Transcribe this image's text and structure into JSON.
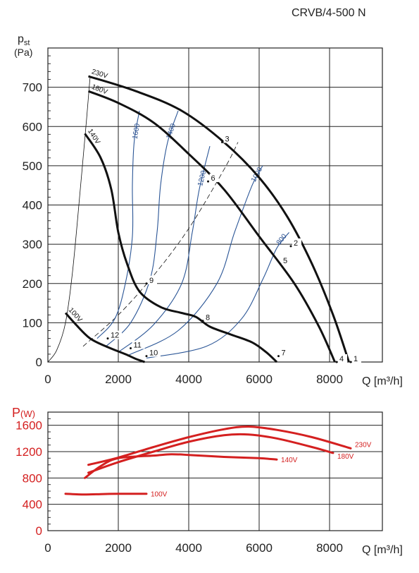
{
  "model": "CRVB/4-500 N",
  "chart_data": [
    {
      "type": "line",
      "title": "CRVB/4-500 N",
      "ylabel_main": "p",
      "ylabel_sub": "st",
      "yunit": "(Pa)",
      "xlabel": "Q [m³/h]",
      "xlim": [
        0,
        9500
      ],
      "ylim": [
        0,
        800
      ],
      "xticks": [
        0,
        2000,
        4000,
        6000,
        8000
      ],
      "yticks": [
        0,
        100,
        200,
        300,
        400,
        500,
        600,
        700
      ],
      "grid": true,
      "voltage_curves": [
        {
          "name": "230V",
          "points": [
            [
              1150,
              728
            ],
            [
              2500,
              690
            ],
            [
              3800,
              640
            ],
            [
              5000,
              560
            ],
            [
              6000,
              470
            ],
            [
              6800,
              370
            ],
            [
              7500,
              250
            ],
            [
              8100,
              120
            ],
            [
              8550,
              0
            ]
          ]
        },
        {
          "name": "180V",
          "points": [
            [
              1150,
              690
            ],
            [
              2000,
              660
            ],
            [
              3000,
              610
            ],
            [
              4000,
              530
            ],
            [
              5000,
              440
            ],
            [
              6000,
              320
            ],
            [
              7000,
              200
            ],
            [
              7700,
              90
            ],
            [
              8150,
              0
            ]
          ]
        },
        {
          "name": "140V",
          "points": [
            [
              1050,
              582
            ],
            [
              1500,
              520
            ],
            [
              1800,
              440
            ],
            [
              2000,
              330
            ],
            [
              2250,
              250
            ],
            [
              2600,
              180
            ],
            [
              3200,
              140
            ],
            [
              3800,
              125
            ],
            [
              4200,
              115
            ],
            [
              4600,
              90
            ],
            [
              5200,
              70
            ],
            [
              5800,
              50
            ],
            [
              6200,
              25
            ],
            [
              6500,
              0
            ]
          ]
        },
        {
          "name": "100V",
          "points": [
            [
              500,
              125
            ],
            [
              800,
              95
            ],
            [
              1200,
              60
            ],
            [
              1700,
              38
            ],
            [
              2200,
              20
            ],
            [
              2500,
              8
            ],
            [
              2750,
              0
            ]
          ]
        }
      ],
      "isopower_curves": [
        {
          "name": "1600",
          "points": [
            [
              1400,
              60
            ],
            [
              1900,
              110
            ],
            [
              2200,
              200
            ],
            [
              2400,
              320
            ],
            [
              2400,
              450
            ],
            [
              2450,
              560
            ],
            [
              2600,
              640
            ]
          ]
        },
        {
          "name": "1400",
          "points": [
            [
              1650,
              40
            ],
            [
              2350,
              100
            ],
            [
              2900,
              210
            ],
            [
              3100,
              330
            ],
            [
              3200,
              450
            ],
            [
              3400,
              560
            ],
            [
              3700,
              640
            ]
          ]
        },
        {
          "name": "1200",
          "points": [
            [
              2000,
              25
            ],
            [
              3000,
              95
            ],
            [
              3800,
              200
            ],
            [
              4100,
              330
            ],
            [
              4300,
              440
            ],
            [
              4600,
              550
            ]
          ]
        },
        {
          "name": "1000",
          "points": [
            [
              2300,
              18
            ],
            [
              3700,
              80
            ],
            [
              4800,
              200
            ],
            [
              5300,
              330
            ],
            [
              5800,
              450
            ],
            [
              6100,
              500
            ]
          ]
        },
        {
          "name": "800",
          "points": [
            [
              2800,
              10
            ],
            [
              4500,
              40
            ],
            [
              5500,
              110
            ],
            [
              6100,
              210
            ],
            [
              6500,
              290
            ],
            [
              6850,
              330
            ]
          ]
        }
      ],
      "system_curves": [
        {
          "style": "solid",
          "points": [
            [
              0,
              0
            ],
            [
              250,
              30
            ],
            [
              500,
              100
            ],
            [
              700,
              230
            ],
            [
              900,
              420
            ],
            [
              1100,
              620
            ],
            [
              1200,
              728
            ]
          ]
        },
        {
          "style": "dashed",
          "points": [
            [
              1000,
              40
            ],
            [
              2000,
              120
            ],
            [
              3000,
              220
            ],
            [
              4000,
              340
            ],
            [
              5000,
              490
            ],
            [
              5400,
              560
            ]
          ]
        }
      ],
      "operating_points": [
        {
          "label": "1",
          "q": 8600,
          "p": 0
        },
        {
          "label": "2",
          "q": 6900,
          "p": 295
        },
        {
          "label": "3",
          "q": 4950,
          "p": 560
        },
        {
          "label": "4",
          "q": 8200,
          "p": 0
        },
        {
          "label": "5",
          "q": 6600,
          "p": 250
        },
        {
          "label": "6",
          "q": 4550,
          "p": 460
        },
        {
          "label": "7",
          "q": 6550,
          "p": 15
        },
        {
          "label": "8",
          "q": 4400,
          "p": 105
        },
        {
          "label": "9",
          "q": 2800,
          "p": 200
        },
        {
          "label": "10",
          "q": 2800,
          "p": 15
        },
        {
          "label": "11",
          "q": 2350,
          "p": 35
        },
        {
          "label": "12",
          "q": 1700,
          "p": 60
        }
      ]
    },
    {
      "type": "line",
      "ylabel": "P",
      "yunit": "(W)",
      "xlabel": "Q [m³/h]",
      "xlim": [
        0,
        9500
      ],
      "ylim": [
        0,
        1800
      ],
      "xticks": [
        0,
        2000,
        4000,
        6000,
        8000
      ],
      "yticks": [
        0,
        400,
        800,
        1200,
        1600
      ],
      "grid": true,
      "series": [
        {
          "name": "230V",
          "x": [
            1150,
            2000,
            3000,
            4000,
            5000,
            5700,
            6500,
            7500,
            8600
          ],
          "y": [
            1000,
            1110,
            1270,
            1420,
            1540,
            1580,
            1530,
            1420,
            1250
          ]
        },
        {
          "name": "180V",
          "x": [
            1150,
            2000,
            3000,
            4000,
            5000,
            5700,
            6500,
            7500,
            8100
          ],
          "y": [
            880,
            1040,
            1200,
            1350,
            1450,
            1460,
            1400,
            1270,
            1180
          ]
        },
        {
          "name": "140V",
          "x": [
            1050,
            1500,
            2000,
            3000,
            3500,
            4000,
            5000,
            6000,
            6500
          ],
          "y": [
            800,
            980,
            1100,
            1140,
            1160,
            1150,
            1120,
            1100,
            1080
          ]
        },
        {
          "name": "100V",
          "x": [
            500,
            1000,
            1500,
            2000,
            2500,
            2800
          ],
          "y": [
            560,
            550,
            555,
            560,
            560,
            560
          ]
        }
      ]
    }
  ]
}
